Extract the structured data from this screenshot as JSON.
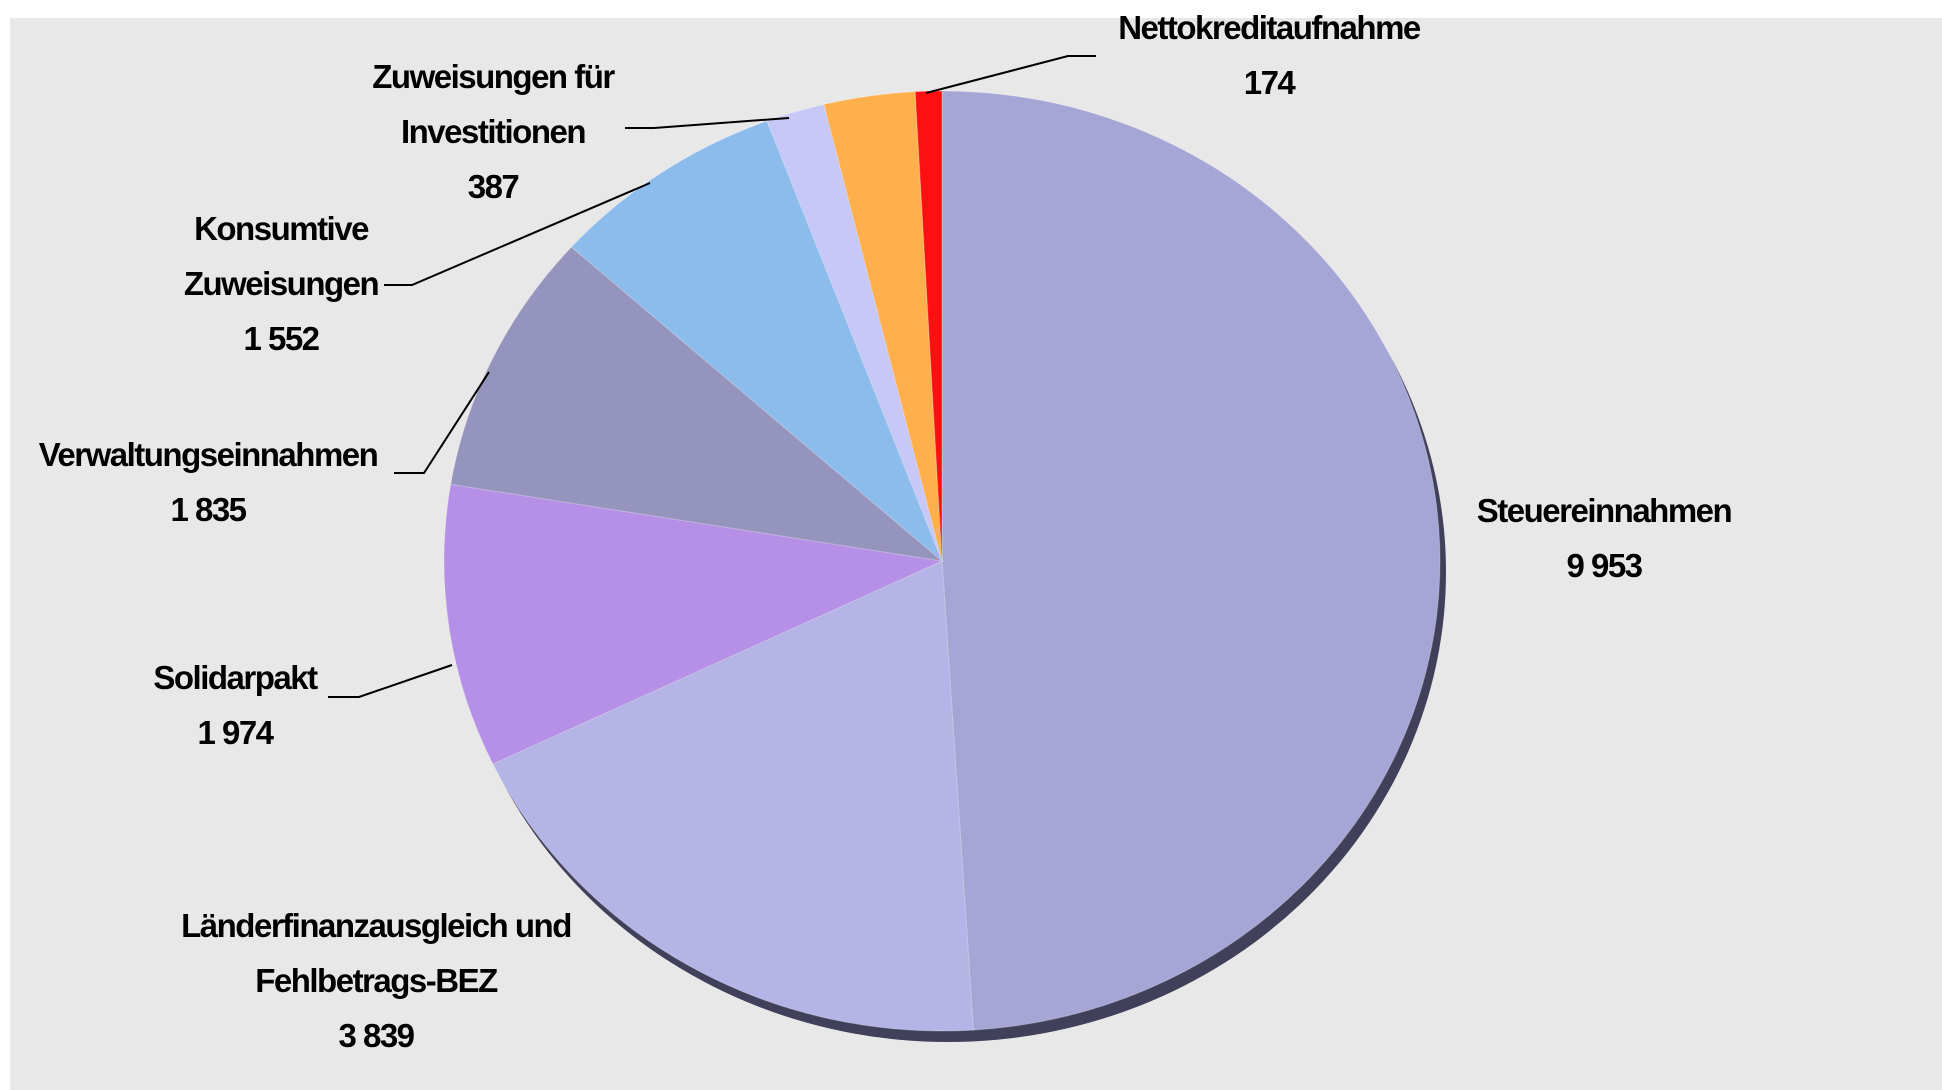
{
  "chart_data": {
    "type": "pie",
    "categories": [
      "Steuereinnahmen",
      "Länderfinanzausgleich und Fehlbetrags-BEZ",
      "Solidarpakt",
      "Verwaltungseinnahmen",
      "Konsumtive Zuweisungen",
      "Zuweisungen für Investitionen",
      null,
      "Nettokreditaufnahme"
    ],
    "values": [
      9953,
      3839,
      1974,
      1835,
      1552,
      387,
      600,
      174
    ],
    "value_labels": [
      "9 953",
      "3 839",
      "1 974",
      "1 835",
      "1 552",
      "387",
      null,
      "174"
    ],
    "colors": [
      "#a6a6d6",
      "#b4b4e6",
      "#b690e6",
      "#9494bc",
      "#8cbcec",
      "#c8c8f8",
      "#ffb04c",
      "#ff1010"
    ]
  }
}
